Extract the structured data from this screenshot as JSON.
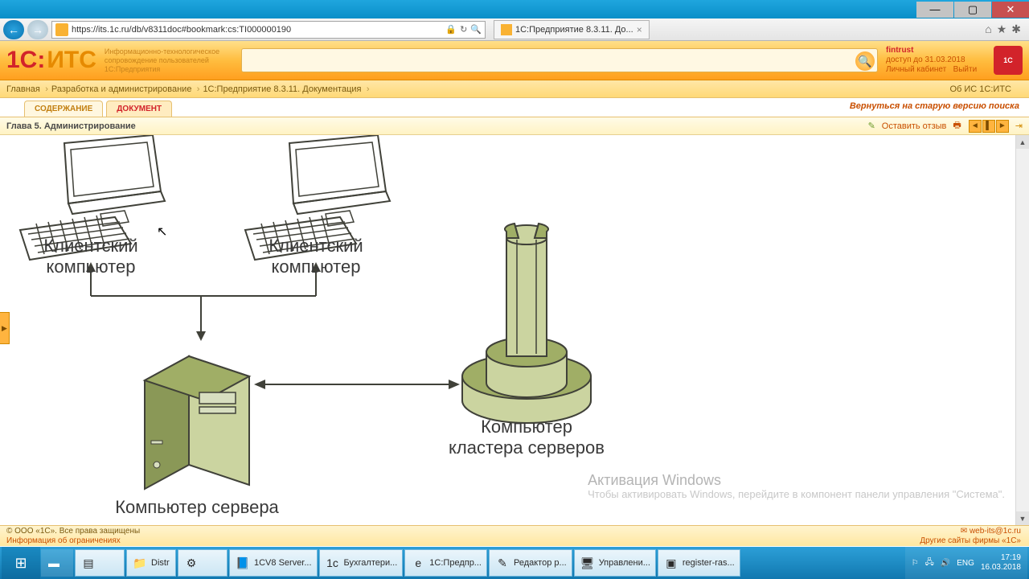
{
  "window": {
    "min": "—",
    "max": "▢",
    "close": "✕"
  },
  "ie": {
    "url": "https://its.1c.ru/db/v8311doc#bookmark:cs:TI000000190",
    "tab": "1С:Предприятие 8.3.11. До...",
    "icons": {
      "refresh": "↻",
      "stop": "✖",
      "search": "🔍",
      "lock": "🔒"
    },
    "right": {
      "home": "⌂",
      "star": "★",
      "gear": "✱"
    }
  },
  "its": {
    "logoA": "1С:",
    "logoB": "ИТС",
    "slogan": "Информационно-технологическое сопровождение пользователей 1С:Предприятия",
    "user": {
      "name": "fintrust",
      "until": "доступ до 31.03.2018",
      "cabinet": "Личный кабинет",
      "logout": "Выйти"
    },
    "badge": "1С"
  },
  "crumbs": {
    "c1": "Главная",
    "c2": "Разработка и администрирование",
    "c3": "1С:Предприятие 8.3.11. Документация",
    "right": "Об ИС 1С:ИТС"
  },
  "tabs": {
    "t1": "СОДЕРЖАНИЕ",
    "t2": "ДОКУМЕНТ",
    "old": "Вернуться на старую версию поиска"
  },
  "chapter": {
    "title": "Глава 5. Администрирование",
    "feedback": "Оставить отзыв",
    "print": "🖶"
  },
  "diagram": {
    "client1": "Клиентский\nкомпьютер",
    "client2": "Клиентский\nкомпьютер",
    "server": "Компьютер сервера",
    "cluster": "Компьютер\nкластера серверов",
    "colors": {
      "outline": "#404139",
      "serverFill": "#a0ae66",
      "serverLight": "#cbd4a0",
      "serverDark": "#8a9857"
    }
  },
  "watermark": {
    "t": "Активация Windows",
    "s": "Чтобы активировать Windows, перейдите в компонент панели управления \"Система\"."
  },
  "footer": {
    "l1": "© ООО «1С». Все права защищены",
    "l2": "Информация об ограничениях",
    "r1": "✉ web-its@1c.ru",
    "r2": "Другие сайты фирмы «1С»"
  },
  "taskbar": {
    "items": [
      {
        "icon": "▤",
        "label": ""
      },
      {
        "icon": "📁",
        "label": "Distr"
      },
      {
        "icon": "⚙",
        "label": ""
      },
      {
        "icon": "📘",
        "label": "1CV8 Server..."
      },
      {
        "icon": "1с",
        "label": "Бухгалтери..."
      },
      {
        "icon": "e",
        "label": "1С:Предпр..."
      },
      {
        "icon": "✎",
        "label": "Редактор р..."
      },
      {
        "icon": "🖥",
        "label": "Управлени..."
      },
      {
        "icon": "▣",
        "label": "register-ras..."
      }
    ],
    "tray": {
      "flag": "⚐",
      "net": "🖧",
      "vol": "🔊",
      "lang": "ENG",
      "time": "17:19",
      "date": "16.03.2018"
    }
  }
}
